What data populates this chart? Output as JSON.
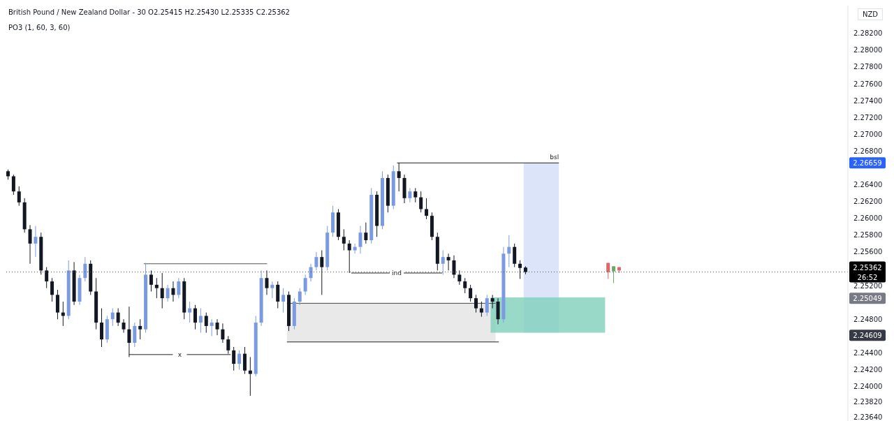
{
  "chart_data": {
    "type": "candlestick",
    "title": "British Pound / New Zealand Dollar - 30 O2.25415 H2.25430 L2.25335 C2.25362",
    "subtitle": "PO3 (1, 60, 3, 60)",
    "ylabel": "NZD",
    "categories": [
      null,
      null,
      null,
      null,
      null,
      null,
      null,
      null,
      null,
      null,
      null,
      null,
      null,
      null,
      null,
      null,
      null,
      null,
      null,
      null,
      null,
      null,
      null,
      null,
      null,
      null,
      null,
      null,
      null,
      null,
      null,
      null,
      null,
      null,
      null,
      null,
      null,
      null,
      null,
      null,
      null,
      null,
      null,
      null,
      null,
      null,
      null,
      null,
      null,
      null,
      null,
      null,
      null,
      null,
      null,
      null,
      null,
      null,
      null,
      null,
      null,
      null,
      null,
      null,
      null,
      null,
      null,
      null,
      null,
      null,
      null,
      null,
      null,
      null,
      null,
      null,
      null,
      null,
      null,
      null,
      null,
      null,
      null,
      null,
      null,
      null,
      null,
      null,
      null,
      null,
      null,
      null,
      null,
      null,
      null,
      null,
      null,
      null,
      null,
      null,
      null,
      null,
      null,
      null,
      null,
      null,
      null,
      null,
      null,
      null,
      null,
      null,
      null,
      null,
      null,
      null,
      null,
      null,
      null,
      null,
      null,
      null,
      null,
      null,
      null,
      null,
      null,
      null,
      null,
      null,
      null,
      null,
      null,
      null,
      null,
      null,
      null,
      null,
      null,
      null,
      null,
      null,
      null,
      null,
      null,
      null,
      null,
      null,
      null,
      null,
      null,
      null,
      null
    ],
    "ohlc": [
      [
        2.2656,
        2.2658,
        2.2646,
        2.265
      ],
      [
        2.265,
        2.2652,
        2.2628,
        2.2632
      ],
      [
        2.2632,
        2.2638,
        2.2615,
        2.2619
      ],
      [
        2.2619,
        2.2624,
        2.2583,
        2.2587
      ],
      [
        2.2587,
        2.2592,
        2.2546,
        2.257
      ],
      [
        2.257,
        2.2591,
        2.2554,
        2.2578
      ],
      [
        2.2578,
        2.2583,
        2.2533,
        2.2538
      ],
      [
        2.2538,
        2.2542,
        2.2517,
        2.2525
      ],
      [
        2.2525,
        2.2529,
        2.2501,
        2.2509
      ],
      [
        2.2509,
        2.2515,
        2.248,
        2.2488
      ],
      [
        2.2488,
        2.2501,
        2.2472,
        2.2484
      ],
      [
        2.2484,
        2.255,
        2.248,
        2.2538
      ],
      [
        2.2538,
        2.2548,
        2.2497,
        2.2501
      ],
      [
        2.2501,
        2.2533,
        2.2497,
        2.2529
      ],
      [
        2.2529,
        2.2554,
        2.2525,
        2.2546
      ],
      [
        2.2546,
        2.255,
        2.2509,
        2.2513
      ],
      [
        2.2513,
        2.2529,
        2.2468,
        2.2476
      ],
      [
        2.2476,
        2.2493,
        2.2447,
        2.2456
      ],
      [
        2.2456,
        2.2484,
        2.2452,
        2.248
      ],
      [
        2.248,
        2.2493,
        2.2472,
        2.2488
      ],
      [
        2.2488,
        2.2493,
        2.2472,
        2.2476
      ],
      [
        2.2476,
        2.248,
        2.2464,
        2.2468
      ],
      [
        2.2468,
        2.2495,
        2.2435,
        2.2452
      ],
      [
        2.2452,
        2.2476,
        2.2447,
        2.2472
      ],
      [
        2.2472,
        2.248,
        2.2456,
        2.2468
      ],
      [
        2.2468,
        2.2547,
        2.2464,
        2.2533
      ],
      [
        2.2533,
        2.2538,
        2.2513,
        2.2521
      ],
      [
        2.2521,
        2.2529,
        2.2505,
        2.2517
      ],
      [
        2.2517,
        2.2535,
        2.2493,
        2.2505
      ],
      [
        2.2505,
        2.2521,
        2.2501,
        2.2517
      ],
      [
        2.2517,
        2.2525,
        2.2501,
        2.2509
      ],
      [
        2.2509,
        2.2529,
        2.2505,
        2.2525
      ],
      [
        2.2525,
        2.2529,
        2.248,
        2.2488
      ],
      [
        2.2488,
        2.2501,
        2.2476,
        2.2493
      ],
      [
        2.2493,
        2.2497,
        2.2468,
        2.2476
      ],
      [
        2.2476,
        2.2493,
        2.2464,
        2.2484
      ],
      [
        2.2484,
        2.2488,
        2.2464,
        2.2472
      ],
      [
        2.2472,
        2.248,
        2.246,
        2.2476
      ],
      [
        2.2476,
        2.248,
        2.2461,
        2.2468
      ],
      [
        2.2468,
        2.2475,
        2.2452,
        2.2456
      ],
      [
        2.2456,
        2.246,
        2.2439,
        2.2443
      ],
      [
        2.2443,
        2.2447,
        2.2419,
        2.2427
      ],
      [
        2.2427,
        2.2443,
        2.242,
        2.2439
      ],
      [
        2.2439,
        2.2447,
        2.2415,
        2.2419
      ],
      [
        2.2419,
        2.2435,
        2.2389,
        2.2415
      ],
      [
        2.2415,
        2.2484,
        2.2412,
        2.2476
      ],
      [
        2.2476,
        2.2538,
        2.2472,
        2.2529
      ],
      [
        2.2529,
        2.2538,
        2.2509,
        2.2517
      ],
      [
        2.2517,
        2.2525,
        2.2505,
        2.2521
      ],
      [
        2.2521,
        2.2525,
        2.2493,
        2.2501
      ],
      [
        2.2501,
        2.2517,
        2.2488,
        2.2509
      ],
      [
        2.2509,
        2.2513,
        2.2466,
        2.2472
      ],
      [
        2.2472,
        2.2505,
        2.2468,
        2.2501
      ],
      [
        2.2501,
        2.2517,
        2.2497,
        2.2513
      ],
      [
        2.2513,
        2.2533,
        2.2509,
        2.2529
      ],
      [
        2.2529,
        2.2546,
        2.2525,
        2.2542
      ],
      [
        2.2542,
        2.256,
        2.2538,
        2.2554
      ],
      [
        2.2554,
        2.2562,
        2.2509,
        2.2542
      ],
      [
        2.2542,
        2.2591,
        2.2538,
        2.2583
      ],
      [
        2.2583,
        2.2615,
        2.2578,
        2.2607
      ],
      [
        2.2607,
        2.2611,
        2.2574,
        2.2578
      ],
      [
        2.2578,
        2.2587,
        2.2562,
        2.257
      ],
      [
        2.257,
        2.2574,
        2.2535,
        2.2562
      ],
      [
        2.2562,
        2.257,
        2.2558,
        2.2566
      ],
      [
        2.2566,
        2.2591,
        2.2558,
        2.2583
      ],
      [
        2.2583,
        2.2595,
        2.257,
        2.2574
      ],
      [
        2.2574,
        2.2636,
        2.257,
        2.2628
      ],
      [
        2.2628,
        2.2632,
        2.2578,
        2.2591
      ],
      [
        2.2591,
        2.2656,
        2.2587,
        2.2648
      ],
      [
        2.2648,
        2.2652,
        2.2607,
        2.2615
      ],
      [
        2.2615,
        2.2663,
        2.2611,
        2.2656
      ],
      [
        2.2656,
        2.2666,
        2.2632,
        2.2648
      ],
      [
        2.2648,
        2.2652,
        2.2618,
        2.2624
      ],
      [
        2.2624,
        2.2636,
        2.2619,
        2.2632
      ],
      [
        2.2632,
        2.2636,
        2.2619,
        2.2625
      ],
      [
        2.2625,
        2.2632,
        2.2607,
        2.2611
      ],
      [
        2.2611,
        2.2624,
        2.2599,
        2.2603
      ],
      [
        2.2603,
        2.2607,
        2.2574,
        2.2578
      ],
      [
        2.2578,
        2.2583,
        2.2538,
        2.2546
      ],
      [
        2.2546,
        2.2562,
        2.2533,
        2.2554
      ],
      [
        2.2554,
        2.2558,
        2.2538,
        2.255
      ],
      [
        2.255,
        2.2556,
        2.2529,
        2.2533
      ],
      [
        2.2533,
        2.2538,
        2.2521,
        2.2525
      ],
      [
        2.2525,
        2.2529,
        2.2511,
        2.2517
      ],
      [
        2.2517,
        2.2521,
        2.2501,
        2.2505
      ],
      [
        2.2505,
        2.2509,
        2.2488,
        2.2493
      ],
      [
        2.2493,
        2.2501,
        2.2483,
        2.2488
      ],
      [
        2.2488,
        2.2509,
        2.2484,
        2.2505
      ],
      [
        2.2505,
        2.2509,
        2.2493,
        2.2501
      ],
      [
        2.2501,
        2.2505,
        2.2474,
        2.248
      ],
      [
        2.248,
        2.2566,
        2.2476,
        2.2558
      ],
      [
        2.2558,
        2.258,
        2.2542,
        2.2566
      ],
      [
        2.2566,
        2.257,
        2.2542,
        2.2546
      ],
      [
        2.2546,
        2.255,
        2.2528,
        2.2541
      ],
      [
        2.25415,
        2.2543,
        2.25335,
        2.25362
      ],
      null,
      null,
      null,
      null,
      null,
      null,
      null,
      null,
      null,
      null,
      null,
      null,
      null,
      null,
      [
        2.2547,
        2.2547,
        2.2528,
        2.2536
      ],
      [
        2.2537,
        2.2543,
        2.2523,
        2.2543
      ],
      [
        2.2542,
        2.2542,
        2.2535,
        2.2538
      ],
      null,
      null,
      null,
      null,
      null,
      null,
      null,
      null,
      null,
      null,
      null,
      null,
      null,
      null,
      null,
      null,
      null,
      null,
      null,
      null,
      null,
      null,
      null,
      null,
      null,
      null,
      null,
      null,
      null,
      null,
      null,
      null,
      null,
      null,
      null,
      null,
      null,
      null,
      null,
      null,
      null
    ],
    "colors": [
      "#131722",
      "#131722",
      "#131722",
      "#131722",
      "#131722",
      "#7b9be0",
      "#131722",
      "#131722",
      "#131722",
      "#131722",
      "#131722",
      "#7b9be0",
      "#131722",
      "#7b9be0",
      "#7b9be0",
      "#131722",
      "#131722",
      "#131722",
      "#7b9be0",
      "#7b9be0",
      "#131722",
      "#131722",
      "#131722",
      "#7b9be0",
      "#131722",
      "#7b9be0",
      "#131722",
      "#131722",
      "#131722",
      "#7b9be0",
      "#131722",
      "#7b9be0",
      "#131722",
      "#7b9be0",
      "#131722",
      "#7b9be0",
      "#131722",
      "#7b9be0",
      "#131722",
      "#131722",
      "#131722",
      "#131722",
      "#7b9be0",
      "#131722",
      "#131722",
      "#7b9be0",
      "#7b9be0",
      "#131722",
      "#7b9be0",
      "#131722",
      "#7b9be0",
      "#131722",
      "#7b9be0",
      "#7b9be0",
      "#7b9be0",
      "#7b9be0",
      "#7b9be0",
      "#131722",
      "#7b9be0",
      "#7b9be0",
      "#131722",
      "#131722",
      "#131722",
      "#7b9be0",
      "#7b9be0",
      "#131722",
      "#7b9be0",
      "#131722",
      "#7b9be0",
      "#131722",
      "#7b9be0",
      "#131722",
      "#131722",
      "#7b9be0",
      "#131722",
      "#131722",
      "#131722",
      "#131722",
      "#131722",
      "#7b9be0",
      "#131722",
      "#131722",
      "#131722",
      "#131722",
      "#131722",
      "#131722",
      "#131722",
      "#7b9be0",
      "#131722",
      "#131722",
      "#7b9be0",
      "#7b9be0",
      "#131722",
      "#131722",
      "#131722",
      null,
      null,
      null,
      null,
      null,
      null,
      null,
      null,
      null,
      null,
      null,
      null,
      null,
      null,
      "#e06666",
      "#6aa86a",
      "#e06666",
      null,
      null,
      null,
      null,
      null,
      null,
      null,
      null,
      null,
      null,
      null,
      null,
      null,
      null,
      null,
      null,
      null,
      null,
      null,
      null,
      null,
      null,
      null,
      null,
      null,
      null,
      null,
      null,
      null,
      null,
      null,
      null,
      null,
      null,
      null,
      null,
      null,
      null,
      null,
      null,
      null
    ],
    "ylim": [
      2.2359,
      2.2853
    ],
    "yticks": [
      {
        "value": 2.2364,
        "label": "2.23640"
      },
      {
        "value": 2.2382,
        "label": "2.23820"
      },
      {
        "value": 2.24,
        "label": "2.24000"
      },
      {
        "value": 2.242,
        "label": "2.24200"
      },
      {
        "value": 2.244,
        "label": "2.24400"
      },
      {
        "value": 2.248,
        "label": "2.24800"
      },
      {
        "value": 2.252,
        "label": "2.25200"
      },
      {
        "value": 2.256,
        "label": "2.25600"
      },
      {
        "value": 2.258,
        "label": "2.25800"
      },
      {
        "value": 2.26,
        "label": "2.26000"
      },
      {
        "value": 2.262,
        "label": "2.26200"
      },
      {
        "value": 2.264,
        "label": "2.26400"
      },
      {
        "value": 2.268,
        "label": "2.26800"
      },
      {
        "value": 2.27,
        "label": "2.27000"
      },
      {
        "value": 2.272,
        "label": "2.27200"
      },
      {
        "value": 2.274,
        "label": "2.27400"
      },
      {
        "value": 2.276,
        "label": "2.27600"
      },
      {
        "value": 2.278,
        "label": "2.27800"
      },
      {
        "value": 2.28,
        "label": "2.28000"
      },
      {
        "value": 2.282,
        "label": "2.28200"
      }
    ],
    "tick_labels": "y",
    "ref_lines": [
      {
        "axis": "y",
        "value": 2.25362,
        "label": "2.25362 26:52",
        "color": "#555555",
        "line_style": "dotted"
      }
    ],
    "annotations": [
      "bsl",
      "ind",
      "x",
      "2.26659",
      "2.25049",
      "2.24609"
    ]
  }
}
